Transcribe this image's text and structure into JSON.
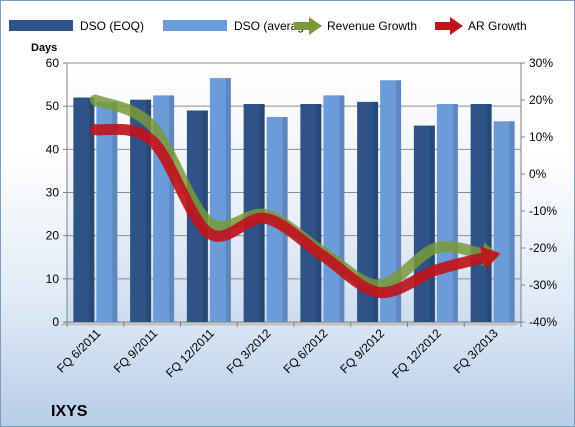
{
  "company_label": "IXYS",
  "chart_data": {
    "type": "bar",
    "categories": [
      "FQ 6/2011",
      "FQ 9/2011",
      "FQ 12/2011",
      "FQ 3/2012",
      "FQ 6/2012",
      "FQ 9/2012",
      "FQ 12/2012",
      "FQ 3/2013"
    ],
    "series": [
      {
        "name": "DSO (EOQ)",
        "type": "bar",
        "axis": "left",
        "color": "#2e5387",
        "values": [
          52,
          51.5,
          49,
          50.5,
          50.5,
          51,
          45.5,
          50.5
        ]
      },
      {
        "name": "DSO (average)",
        "type": "bar",
        "axis": "left",
        "color": "#6b9bd8",
        "values": [
          51,
          52.5,
          56.5,
          47.5,
          52.5,
          56,
          50.5,
          46.5
        ]
      },
      {
        "name": "Revenue Growth",
        "type": "line-arrow",
        "axis": "right",
        "color": "#7a9a3a",
        "values": [
          20,
          13,
          -13,
          -11,
          -21,
          -30,
          -20,
          -22
        ]
      },
      {
        "name": "AR Growth",
        "type": "line-arrow",
        "axis": "right",
        "color": "#c0141c",
        "values": [
          12,
          9,
          -16,
          -12,
          -22,
          -32,
          -26,
          -22
        ]
      }
    ],
    "ylabel": "Days",
    "ylim": [
      0,
      60
    ],
    "yticks": [
      "0",
      "10",
      "20",
      "30",
      "40",
      "50",
      "60"
    ],
    "y2lim": [
      -40,
      30
    ],
    "y2ticks": [
      "-40%",
      "-30%",
      "-20%",
      "-10%",
      "0%",
      "10%",
      "20%",
      "30%"
    ],
    "grid": "horizontal",
    "legend_position": "top"
  }
}
